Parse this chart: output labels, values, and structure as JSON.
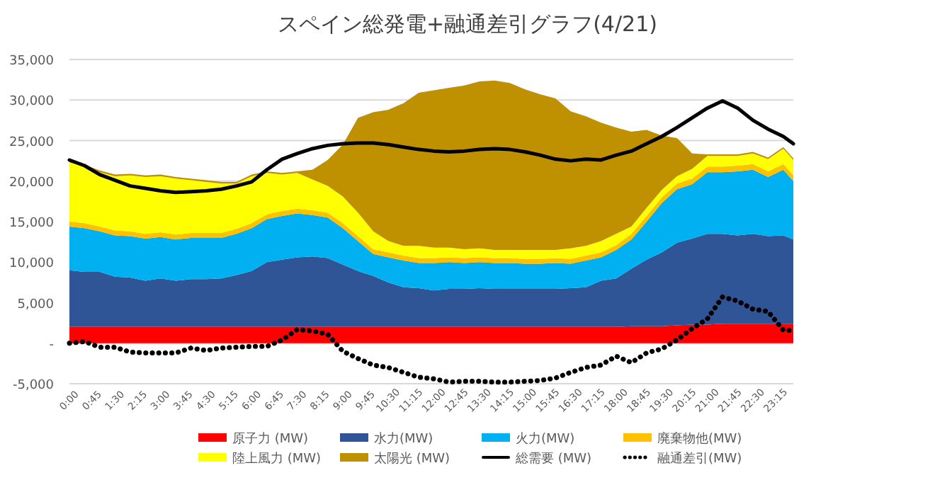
{
  "chart_data": {
    "type": "area",
    "title": "スペイン総発電+融通差引グラフ(4/21)",
    "stacked": true,
    "grid": "y",
    "legend": "bottom",
    "x": [
      0,
      0.5,
      1,
      1.5,
      2,
      2.5,
      3,
      3.5,
      4,
      4.5,
      5,
      5.5,
      6,
      6.5,
      7,
      7.5,
      8,
      8.5,
      9,
      9.5,
      10,
      10.5,
      11,
      11.5,
      12,
      12.5,
      13,
      13.5,
      14,
      14.5,
      15,
      15.5,
      16,
      16.5,
      17,
      17.5,
      18,
      18.5,
      19,
      19.5,
      20,
      20.5,
      21,
      21.5,
      22,
      22.5,
      23,
      23.5,
      23.83
    ],
    "xlim": [
      0,
      23.83
    ],
    "xticks": [
      {
        "value": 0,
        "label": "0:00"
      },
      {
        "value": 0.75,
        "label": "0:45"
      },
      {
        "value": 1.5,
        "label": "1:30"
      },
      {
        "value": 2.25,
        "label": "2:15"
      },
      {
        "value": 3,
        "label": "3:00"
      },
      {
        "value": 3.75,
        "label": "3:45"
      },
      {
        "value": 4.5,
        "label": "4:30"
      },
      {
        "value": 5.25,
        "label": "5:15"
      },
      {
        "value": 6,
        "label": "6:00"
      },
      {
        "value": 6.75,
        "label": "6:45"
      },
      {
        "value": 7.5,
        "label": "7:30"
      },
      {
        "value": 8.25,
        "label": "8:15"
      },
      {
        "value": 9,
        "label": "9:00"
      },
      {
        "value": 9.75,
        "label": "9:45"
      },
      {
        "value": 10.5,
        "label": "10:30"
      },
      {
        "value": 11.25,
        "label": "11:15"
      },
      {
        "value": 12,
        "label": "12:00"
      },
      {
        "value": 12.75,
        "label": "12:45"
      },
      {
        "value": 13.5,
        "label": "13:30"
      },
      {
        "value": 14.25,
        "label": "14:15"
      },
      {
        "value": 15,
        "label": "15:00"
      },
      {
        "value": 15.75,
        "label": "15:45"
      },
      {
        "value": 16.5,
        "label": "16:30"
      },
      {
        "value": 17.25,
        "label": "17:15"
      },
      {
        "value": 18,
        "label": "18:00"
      },
      {
        "value": 18.75,
        "label": "18:45"
      },
      {
        "value": 19.5,
        "label": "19:30"
      },
      {
        "value": 20.25,
        "label": "20:15"
      },
      {
        "value": 21,
        "label": "21:00"
      },
      {
        "value": 21.75,
        "label": "21:45"
      },
      {
        "value": 22.5,
        "label": "22:30"
      },
      {
        "value": 23.25,
        "label": "23:15"
      }
    ],
    "ylim": [
      -5000,
      35000
    ],
    "yticks": [
      {
        "value": -5000,
        "label": "-5,000"
      },
      {
        "value": 0,
        "label": "-"
      },
      {
        "value": 5000,
        "label": "5,000"
      },
      {
        "value": 10000,
        "label": "10,000"
      },
      {
        "value": 15000,
        "label": "15,000"
      },
      {
        "value": 20000,
        "label": "20,000"
      },
      {
        "value": 25000,
        "label": "25,000"
      },
      {
        "value": 30000,
        "label": "30,000"
      },
      {
        "value": 35000,
        "label": "35,000"
      }
    ],
    "series": [
      {
        "name": "原子力 (MW)",
        "color": "#ff0000",
        "values": [
          2000,
          2000,
          2000,
          2000,
          2000,
          2000,
          2000,
          2000,
          2000,
          2000,
          2000,
          2000,
          2000,
          2000,
          2000,
          2000,
          2000,
          2000,
          2000,
          2000,
          2000,
          2000,
          2000,
          2000,
          2000,
          2000,
          2000,
          2000,
          2000,
          2000,
          2000,
          2000,
          2000,
          2000,
          2000,
          2000,
          2000,
          2100,
          2100,
          2100,
          2200,
          2300,
          2300,
          2400,
          2400,
          2400,
          2400,
          2400,
          2400
        ]
      },
      {
        "name": "水力(MW)",
        "color": "#2f5597",
        "values": [
          7000,
          6800,
          6800,
          6200,
          6100,
          5700,
          6000,
          5700,
          5900,
          5900,
          6000,
          6400,
          6900,
          8000,
          8300,
          8600,
          8700,
          8500,
          7700,
          6900,
          6300,
          5500,
          4900,
          4800,
          4500,
          4700,
          4700,
          4800,
          4700,
          4700,
          4700,
          4700,
          4700,
          4800,
          4900,
          5700,
          6000,
          7100,
          8200,
          9100,
          10200,
          10600,
          11200,
          11100,
          10900,
          11100,
          10800,
          10900,
          10400
        ]
      },
      {
        "name": "火力(MW)",
        "color": "#00b0f0",
        "values": [
          5400,
          5400,
          5000,
          5100,
          5100,
          5200,
          5100,
          5100,
          5100,
          5100,
          5000,
          5100,
          5300,
          5300,
          5400,
          5400,
          5100,
          5000,
          4500,
          3700,
          2700,
          3100,
          3300,
          3100,
          3400,
          3300,
          3200,
          3200,
          3200,
          3200,
          3100,
          3100,
          3200,
          3000,
          3300,
          2900,
          3500,
          3600,
          4700,
          6100,
          6600,
          6700,
          7600,
          7600,
          7900,
          7900,
          7300,
          8100,
          7200
        ]
      },
      {
        "name": "廃棄物他(MW)",
        "color": "#ffc000",
        "values": [
          600,
          600,
          600,
          600,
          600,
          600,
          600,
          600,
          600,
          600,
          600,
          600,
          600,
          600,
          600,
          600,
          600,
          600,
          600,
          600,
          600,
          600,
          600,
          600,
          600,
          600,
          600,
          600,
          600,
          600,
          600,
          600,
          600,
          600,
          600,
          600,
          600,
          700,
          700,
          700,
          700,
          700,
          700,
          700,
          700,
          700,
          700,
          700,
          700
        ]
      },
      {
        "name": "陸上風力 (MW)",
        "color": "#ffff00",
        "values": [
          7300,
          7000,
          6700,
          6700,
          6900,
          7000,
          6900,
          6900,
          6500,
          6300,
          6100,
          5600,
          5800,
          5100,
          4500,
          4400,
          3800,
          3300,
          3300,
          2900,
          2200,
          1400,
          1200,
          1500,
          1300,
          1200,
          1100,
          1100,
          1000,
          1000,
          1100,
          1100,
          1000,
          1300,
          1200,
          1400,
          1400,
          900,
          1000,
          900,
          900,
          1200,
          1300,
          1300,
          1200,
          1300,
          1500,
          1900,
          1900
        ]
      },
      {
        "name": "太陽光 (MW)",
        "color": "#bf9000",
        "values": [
          200,
          200,
          200,
          200,
          200,
          200,
          200,
          200,
          200,
          200,
          200,
          200,
          200,
          200,
          200,
          200,
          1200,
          3200,
          6400,
          11700,
          14700,
          16200,
          17600,
          18900,
          19400,
          19700,
          20200,
          20600,
          20900,
          20600,
          19800,
          19200,
          18700,
          16900,
          16000,
          14600,
          13100,
          11700,
          9600,
          6700,
          4700,
          1900,
          200,
          200,
          200,
          200,
          200,
          200,
          200
        ]
      },
      {
        "name": "総需要 (MW)",
        "type": "line",
        "line_style": "solid",
        "color": "#000000",
        "values": [
          22600,
          21900,
          20800,
          20100,
          19400,
          19100,
          18800,
          18600,
          18700,
          18800,
          19000,
          19400,
          19900,
          21400,
          22700,
          23400,
          24000,
          24400,
          24600,
          24700,
          24700,
          24500,
          24200,
          23900,
          23700,
          23600,
          23700,
          23900,
          24000,
          23900,
          23600,
          23200,
          22700,
          22500,
          22700,
          22600,
          23200,
          23700,
          24600,
          25500,
          26600,
          27800,
          29000,
          29900,
          29000,
          27500,
          26400,
          25500,
          24600
        ]
      },
      {
        "name": "融通差引(MW)",
        "type": "line",
        "line_style": "dotted",
        "color": "#000000",
        "values": [
          0,
          200,
          -500,
          -500,
          -1100,
          -1200,
          -1200,
          -1200,
          -600,
          -900,
          -600,
          -500,
          -400,
          -400,
          400,
          1700,
          1500,
          1100,
          -1000,
          -1900,
          -2700,
          -3000,
          -3600,
          -4200,
          -4400,
          -4800,
          -4700,
          -4700,
          -4800,
          -4800,
          -4700,
          -4600,
          -4300,
          -3600,
          -3000,
          -2700,
          -1600,
          -2400,
          -1200,
          -700,
          400,
          1800,
          3000,
          5700,
          5200,
          4200,
          3900,
          1600,
          1600
        ]
      }
    ]
  }
}
